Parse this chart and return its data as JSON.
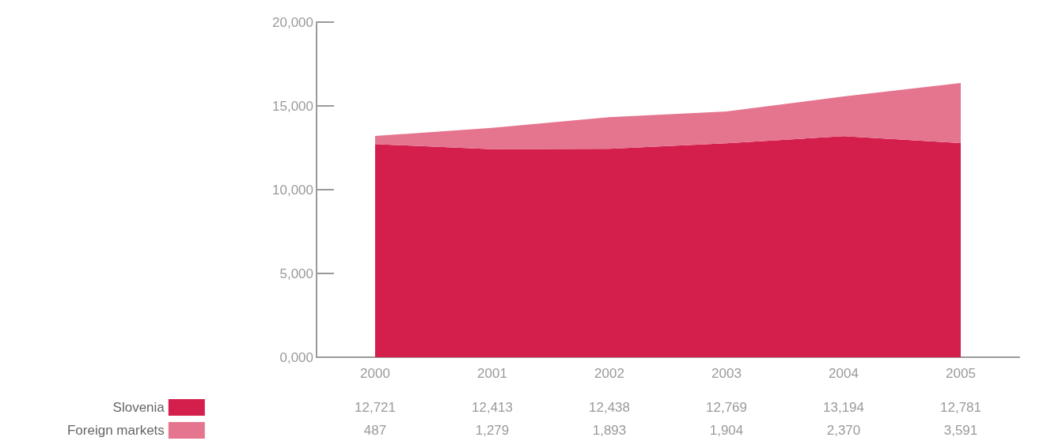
{
  "chart_data": {
    "type": "area",
    "stacked": true,
    "categories": [
      "2000",
      "2001",
      "2002",
      "2003",
      "2004",
      "2005"
    ],
    "series": [
      {
        "name": "Slovenia",
        "color": "#d41f4d",
        "values": [
          12721,
          12413,
          12438,
          12769,
          13194,
          12781
        ],
        "value_labels": [
          "12,721",
          "12,413",
          "12,438",
          "12,769",
          "13,194",
          "12,781"
        ]
      },
      {
        "name": "Foreign markets",
        "color": "#e5758f",
        "values": [
          487,
          1279,
          1893,
          1904,
          2370,
          3591
        ],
        "value_labels": [
          "487",
          "1,279",
          "1,893",
          "1,904",
          "2,370",
          "3,591"
        ]
      }
    ],
    "ylim": [
      0,
      20000
    ],
    "yticks": [
      {
        "value": 0,
        "label": "0,000"
      },
      {
        "value": 5000,
        "label": "5,000"
      },
      {
        "value": 10000,
        "label": "10,000"
      },
      {
        "value": 15000,
        "label": "15,000"
      },
      {
        "value": 20000,
        "label": "20,000"
      }
    ],
    "legend": "bottom left",
    "grid": false
  }
}
